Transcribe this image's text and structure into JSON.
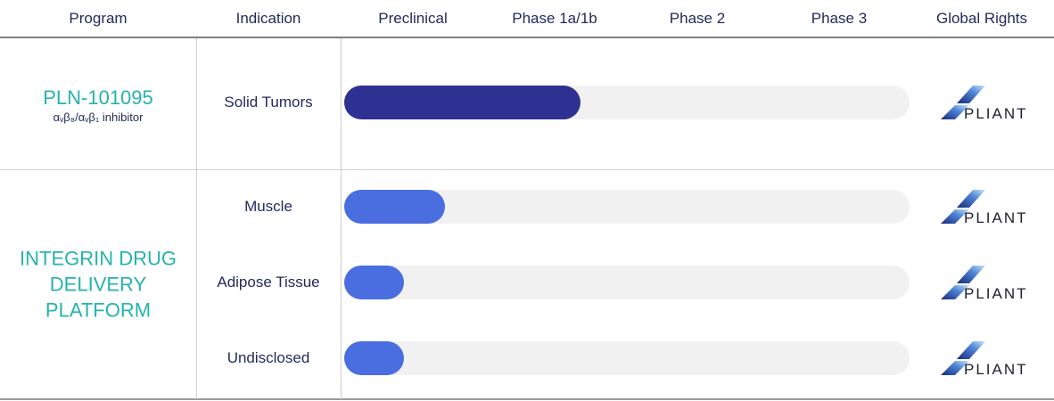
{
  "header": [
    "Program",
    "Indication",
    "Preclinical",
    "Phase 1a/1b",
    "Phase 2",
    "Phase 3",
    "Global Rights"
  ],
  "programs": [
    {
      "name": "PLN-101095",
      "subtitle": "αᵥβ₈/αᵥβ₁ inhibitor",
      "color": "#2e3192",
      "rows": [
        {
          "indication": "Solid Tumors",
          "progress": 1.67,
          "rights": "PLIANT"
        }
      ]
    },
    {
      "name": "INTEGRIN DRUG DELIVERY PLATFORM",
      "color": "#4a6ee0",
      "rows": [
        {
          "indication": "Muscle",
          "progress": 0.71,
          "rights": "PLIANT"
        },
        {
          "indication": "Adipose Tissue",
          "progress": 0.42,
          "rights": "PLIANT"
        },
        {
          "indication": "Undisclosed",
          "progress": 0.42,
          "rights": "PLIANT"
        }
      ]
    }
  ]
}
